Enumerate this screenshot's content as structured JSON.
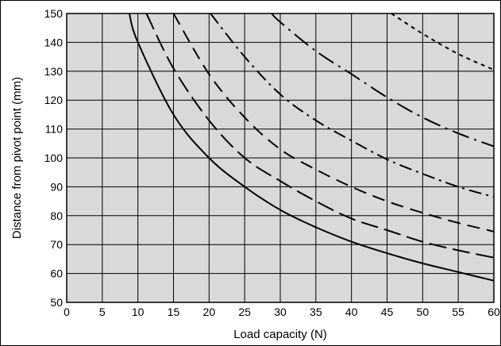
{
  "chart_data": {
    "type": "line",
    "title": "",
    "xlabel": "Load capacity (N)",
    "ylabel": "Distance from pivot point (mm)",
    "xlim": [
      0,
      60
    ],
    "ylim": [
      50,
      150
    ],
    "x_ticks": [
      0,
      5,
      10,
      15,
      20,
      25,
      30,
      35,
      40,
      45,
      50,
      55,
      60
    ],
    "y_ticks": [
      50,
      60,
      70,
      80,
      90,
      100,
      110,
      120,
      130,
      140,
      150
    ],
    "grid": true,
    "legend": "none",
    "plot_background": "#d9d9d9",
    "series": [
      {
        "style": "solid",
        "points": [
          [
            8.8,
            150
          ],
          [
            10,
            140
          ],
          [
            15,
            115
          ],
          [
            20,
            100
          ],
          [
            25,
            90
          ],
          [
            30,
            82
          ],
          [
            35,
            76
          ],
          [
            40,
            71
          ],
          [
            45,
            67
          ],
          [
            50,
            63.5
          ],
          [
            55,
            60.5
          ],
          [
            60,
            57.5
          ]
        ]
      },
      {
        "style": "long-dash",
        "points": [
          [
            11.2,
            150
          ],
          [
            15,
            131
          ],
          [
            20,
            113
          ],
          [
            25,
            100
          ],
          [
            30,
            92
          ],
          [
            35,
            85
          ],
          [
            40,
            79
          ],
          [
            45,
            75
          ],
          [
            50,
            71
          ],
          [
            55,
            68
          ],
          [
            60,
            65.5
          ]
        ]
      },
      {
        "style": "medium-dash",
        "points": [
          [
            15,
            150
          ],
          [
            20,
            129
          ],
          [
            25,
            114
          ],
          [
            30,
            103
          ],
          [
            35,
            96
          ],
          [
            40,
            90
          ],
          [
            45,
            85
          ],
          [
            50,
            81
          ],
          [
            55,
            77.5
          ],
          [
            60,
            74.5
          ]
        ]
      },
      {
        "style": "dash-dot",
        "points": [
          [
            20.2,
            150
          ],
          [
            25,
            135
          ],
          [
            30,
            122
          ],
          [
            35,
            113
          ],
          [
            40,
            106
          ],
          [
            45,
            99.5
          ],
          [
            50,
            94.5
          ],
          [
            55,
            90
          ],
          [
            60,
            86.5
          ]
        ]
      },
      {
        "style": "dash-dot-dot",
        "points": [
          [
            28.8,
            150
          ],
          [
            30,
            147
          ],
          [
            35,
            137
          ],
          [
            40,
            129
          ],
          [
            45,
            121
          ],
          [
            50,
            114
          ],
          [
            55,
            108.5
          ],
          [
            60,
            104
          ]
        ]
      },
      {
        "style": "short-dash",
        "points": [
          [
            45.6,
            150
          ],
          [
            50,
            143
          ],
          [
            55,
            136
          ],
          [
            60,
            130.5
          ]
        ]
      }
    ]
  }
}
